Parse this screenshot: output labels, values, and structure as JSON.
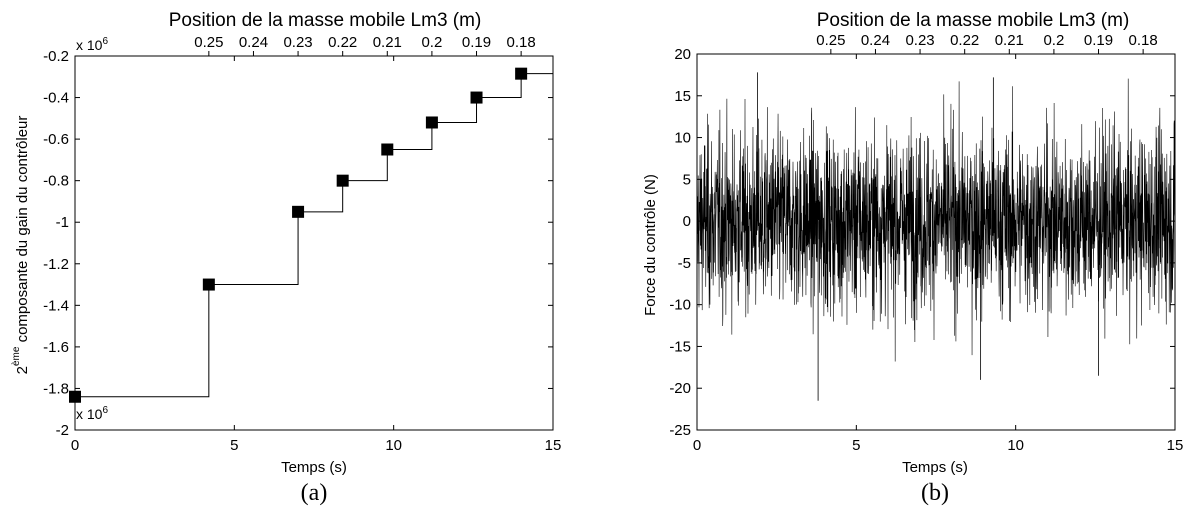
{
  "chart_data": [
    {
      "type": "line",
      "caption": "(a)",
      "top_axis_title": "Position de la masse mobile Lm3 (m)",
      "top_axis_ticks": [
        "0.25",
        "0.24",
        "0.23",
        "0.22",
        "0.21",
        "0.2",
        "0.19",
        "0.18"
      ],
      "top_axis_tick_times": [
        4.2,
        5.6,
        7.0,
        8.4,
        9.8,
        11.2,
        12.6,
        14.0
      ],
      "exponent_label": "x 10",
      "exponent_power": "6",
      "xlabel": "Temps (s)",
      "ylabel_super": "ème",
      "ylabel_prefix": "2",
      "ylabel": "composante du gain du contrôleur",
      "xlim": [
        0,
        15
      ],
      "ylim": [
        -2.0,
        -0.2
      ],
      "xticks": [
        0,
        5,
        10,
        15
      ],
      "xtick_labels": [
        "0",
        "5",
        "10",
        "15"
      ],
      "yticks": [
        -2.0,
        -1.8,
        -1.6,
        -1.4,
        -1.2,
        -1.0,
        -0.8,
        -0.6,
        -0.4,
        -0.2
      ],
      "ytick_labels": [
        "-2",
        "-1.8",
        "-1.6",
        "-1.4",
        "-1.2",
        "-1",
        "-0.8",
        "-0.6",
        "-0.4",
        "-0.2"
      ],
      "grid": false,
      "series": [
        {
          "style": "step",
          "color": "#000000",
          "marker": "square",
          "x": [
            0,
            4.2,
            7.0,
            8.4,
            9.8,
            11.2,
            12.6,
            14.0
          ],
          "y": [
            -1.84,
            -1.3,
            -0.95,
            -0.8,
            -0.65,
            -0.52,
            -0.4,
            -0.285
          ],
          "x_end": 15
        }
      ]
    },
    {
      "type": "line",
      "caption": "(b)",
      "top_axis_title": "Position de la masse mobile Lm3 (m)",
      "top_axis_ticks": [
        "0.25",
        "0.24",
        "0.23",
        "0.22",
        "0.21",
        "0.2",
        "0.19",
        "0.18"
      ],
      "top_axis_tick_times": [
        4.2,
        5.6,
        7.0,
        8.4,
        9.8,
        11.2,
        12.6,
        14.0
      ],
      "xlabel": "Temps (s)",
      "ylabel": "Force du contrôle (N)",
      "xlim": [
        0,
        15
      ],
      "ylim": [
        -25,
        20
      ],
      "xticks": [
        0,
        5,
        10,
        15
      ],
      "xtick_labels": [
        "0",
        "5",
        "10",
        "15"
      ],
      "yticks": [
        -25,
        -20,
        -15,
        -10,
        -5,
        0,
        5,
        10,
        15,
        20
      ],
      "ytick_labels": [
        "-25",
        "-20",
        "-15",
        "-10",
        "-5",
        "0",
        "5",
        "10",
        "15",
        "20"
      ],
      "grid": false,
      "series": [
        {
          "style": "noise",
          "color": "#000000",
          "x_range": [
            0,
            15
          ],
          "mean": 0,
          "typical_band": [
            -10,
            10
          ],
          "max": 17.8,
          "min": -21.5
        }
      ]
    }
  ]
}
